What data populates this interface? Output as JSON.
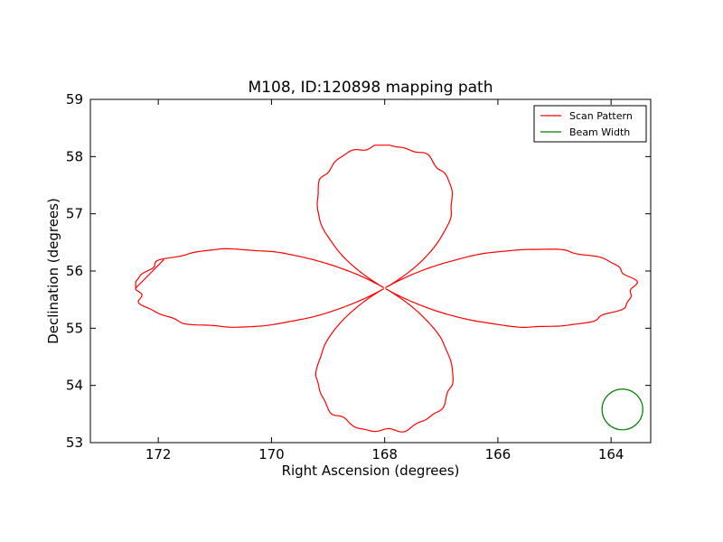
{
  "chart_data": {
    "type": "line",
    "title": "M108, ID:120898 mapping path",
    "xlabel": "Right Ascension (degrees)",
    "ylabel": "Declination (degrees)",
    "xlim": [
      173.2,
      163.3
    ],
    "ylim": [
      53,
      59
    ],
    "x_inverted": true,
    "xticks": [
      172,
      170,
      168,
      166,
      164
    ],
    "yticks": [
      53,
      54,
      55,
      56,
      57,
      58,
      59
    ],
    "grid": false,
    "legend_position": "top-right",
    "series": [
      {
        "name": "Scan Pattern",
        "color": "#ff0000",
        "center": [
          168.0,
          55.7
        ],
        "lobe_reach_ra": 4.4,
        "lobe_reach_dec": 2.5,
        "start_point": [
          171.9,
          56.2
        ],
        "extent": {
          "ra_min": 163.3,
          "ra_max": 172.4,
          "dec_min": 53.15,
          "dec_max": 58.2
        }
      },
      {
        "name": "Beam Width",
        "color": "#008000",
        "center": [
          163.8,
          53.58
        ],
        "radius_ra": 0.36
      }
    ]
  }
}
